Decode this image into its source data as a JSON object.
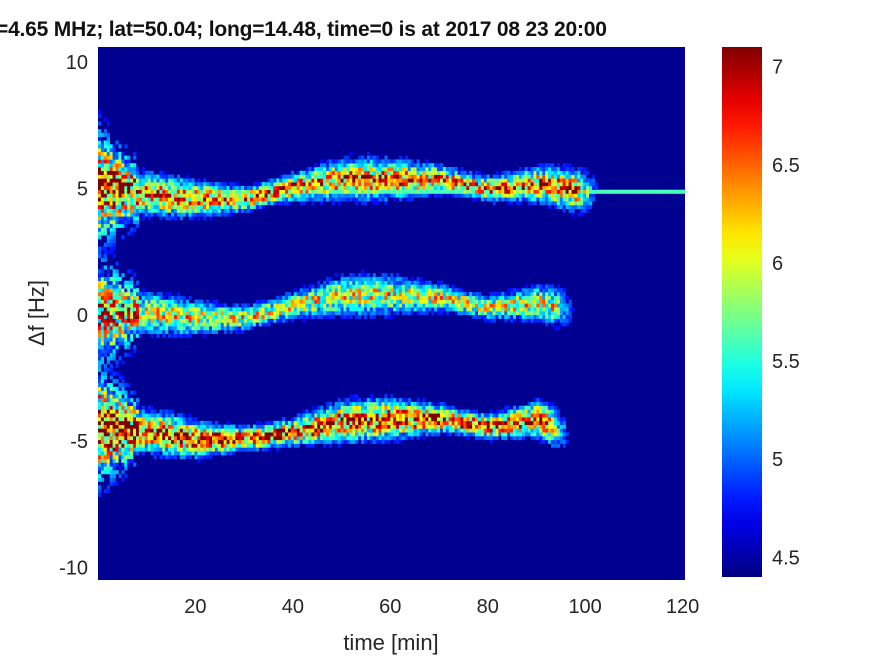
{
  "chart_data": {
    "type": "heatmap",
    "title": "=4.65 MHz;  lat=50.04; long=14.48, time=0 is at 2017 08 23 20:00",
    "xlabel": "time [min]",
    "ylabel": "Δf [Hz]",
    "xlim": [
      0,
      120.5
    ],
    "ylim": [
      -10.5,
      10.6
    ],
    "xticks": [
      20,
      40,
      60,
      80,
      100,
      120
    ],
    "yticks": [
      10,
      5,
      0,
      -5,
      -10
    ],
    "colormap": "jet",
    "clim": [
      4.4,
      7.1
    ],
    "colorbar_ticks": [
      7,
      6.5,
      6,
      5.5,
      5,
      4.5
    ],
    "background_value": 4.4,
    "bands": [
      {
        "times": [
          0,
          10,
          20,
          30,
          40,
          50,
          60,
          70,
          80,
          90,
          100
        ],
        "df": [
          5,
          4.7,
          4.5,
          4.5,
          5,
          5.3,
          5.3,
          5.3,
          4.9,
          5.1,
          4.8
        ],
        "end_time": 103,
        "peak": 6.8
      },
      {
        "times": [
          0,
          10,
          20,
          30,
          40,
          50,
          60,
          70,
          80,
          90,
          100
        ],
        "df": [
          0,
          0,
          -0.2,
          -0.2,
          0.3,
          0.7,
          0.7,
          0.6,
          0.2,
          0.4,
          0
        ],
        "end_time": 98,
        "peak": 6.3
      },
      {
        "times": [
          0,
          10,
          20,
          30,
          40,
          50,
          60,
          70,
          80,
          90,
          100
        ],
        "df": [
          -4.5,
          -4.7,
          -5,
          -5,
          -4.7,
          -4.3,
          -4.2,
          -4.2,
          -4.5,
          -4.2,
          -5.2
        ],
        "end_time": 97,
        "peak": 7.0
      }
    ],
    "carrier_line": {
      "df": 4.75,
      "from_time": 10,
      "to_time": 120,
      "value": 5.6
    }
  }
}
